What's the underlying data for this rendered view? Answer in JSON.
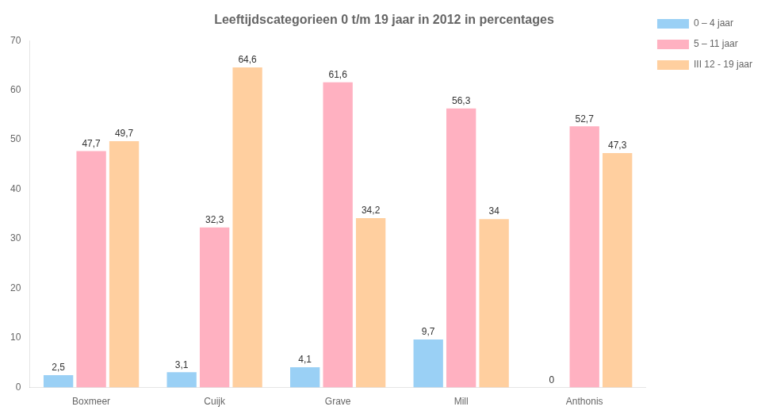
{
  "chart_data": {
    "type": "bar",
    "title": "Leeftijdscategorieen 0 t/m 19 jaar in 2012 in percentages",
    "categories": [
      "Boxmeer",
      "Cuijk",
      "Grave",
      "Mill",
      "Anthonis"
    ],
    "series": [
      {
        "name": "0 – 4 jaar",
        "values": [
          2.5,
          3.1,
          4.1,
          9.7,
          0
        ],
        "value_labels": [
          "2,5",
          "3,1",
          "4,1",
          "9,7",
          "0"
        ]
      },
      {
        "name": "5 – 11 jaar",
        "values": [
          47.7,
          32.3,
          61.6,
          56.3,
          52.7
        ],
        "value_labels": [
          "47,7",
          "32,3",
          "61,6",
          "56,3",
          "52,7"
        ]
      },
      {
        "name": "III 12 - 19 jaar",
        "values": [
          49.7,
          64.6,
          34.2,
          34,
          47.3
        ],
        "value_labels": [
          "49,7",
          "64,6",
          "34,2",
          "34",
          "47,3"
        ]
      }
    ],
    "ylim": [
      0,
      70
    ],
    "yticks": [
      0,
      10,
      20,
      30,
      40,
      50,
      60,
      70
    ],
    "grid": false,
    "legend": "right",
    "data_labels": true
  }
}
